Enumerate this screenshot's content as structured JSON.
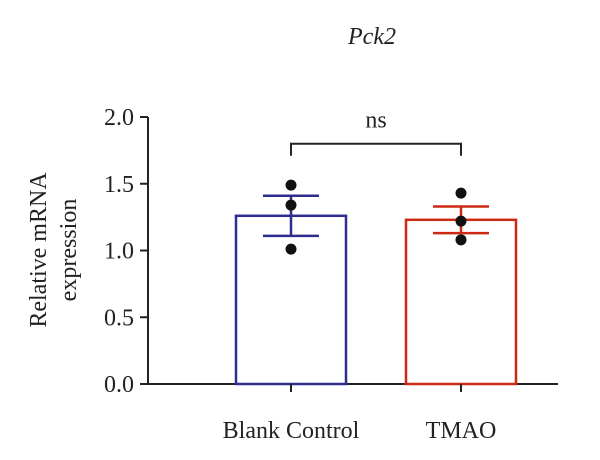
{
  "chart_data": {
    "type": "bar",
    "title": "Pck2",
    "xlabel": "",
    "ylabel_lines": [
      "Relative mRNA",
      "expression"
    ],
    "categories": [
      "Blank Control",
      "TMAO"
    ],
    "values": [
      1.26,
      1.23
    ],
    "error": [
      0.15,
      0.1
    ],
    "points": [
      [
        1.49,
        1.34,
        1.01
      ],
      [
        1.43,
        1.22,
        1.08
      ]
    ],
    "bar_colors": [
      "#2f2d8f",
      "#cc2a12"
    ],
    "ylim": [
      0,
      2.0
    ],
    "yticks": [
      "0.0",
      "0.5",
      "1.0",
      "1.5",
      "2.0"
    ],
    "yticks_values": [
      0,
      0.5,
      1.0,
      1.5,
      2.0
    ],
    "significance": {
      "label": "ns",
      "y": 1.8
    },
    "grid": false
  }
}
